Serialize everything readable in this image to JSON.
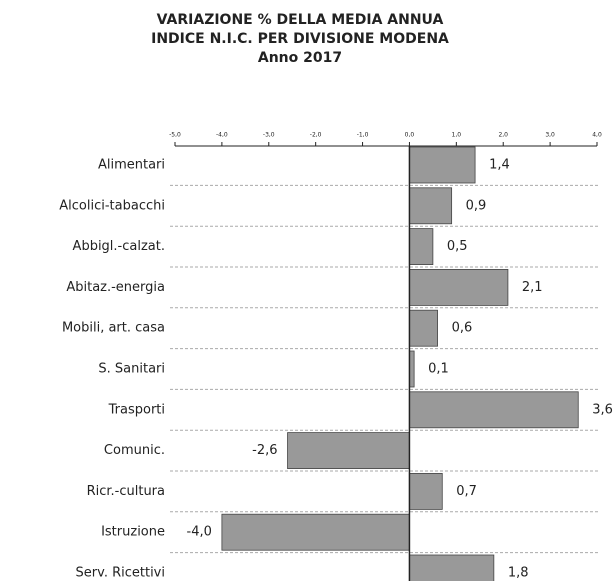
{
  "chart_data": {
    "type": "bar",
    "orientation": "horizontal",
    "title_lines": [
      "VARIAZIONE  % DELLA MEDIA ANNUA",
      "INDICE N.I.C. PER DIVISIONE MODENA",
      "Anno 2017"
    ],
    "categories": [
      "Alimentari",
      "Alcolici-tabacchi",
      "Abbigl.-calzat.",
      "Abitaz.-energia",
      "Mobili, art. casa",
      "S. Sanitari",
      "Trasporti",
      "Comunic.",
      "Ricr.-cultura",
      "Istruzione",
      "Serv. Ricettivi"
    ],
    "values": [
      1.4,
      0.9,
      0.5,
      2.1,
      0.6,
      0.1,
      3.6,
      -2.6,
      0.7,
      -4.0,
      1.8
    ],
    "value_labels": [
      "1,4",
      "0,9",
      "0,5",
      "2,1",
      "0,6",
      "0,1",
      "3,6",
      "-2,6",
      "0,7",
      "-4,0",
      "1,8"
    ],
    "color": "#999999",
    "xlim": [
      -5,
      4
    ],
    "xticks": [
      {
        "value": -5,
        "label": "-5,0"
      },
      {
        "value": -4,
        "label": "-4,0"
      },
      {
        "value": -3,
        "label": "-3,0"
      },
      {
        "value": -2,
        "label": "-2,0"
      },
      {
        "value": -1,
        "label": "-1,0"
      },
      {
        "value": 0,
        "label": "0,0"
      },
      {
        "value": 1,
        "label": "1,0"
      },
      {
        "value": 2,
        "label": "2,0"
      },
      {
        "value": 3,
        "label": "3,0"
      },
      {
        "value": 4,
        "label": "4,0"
      }
    ],
    "grid": true
  }
}
